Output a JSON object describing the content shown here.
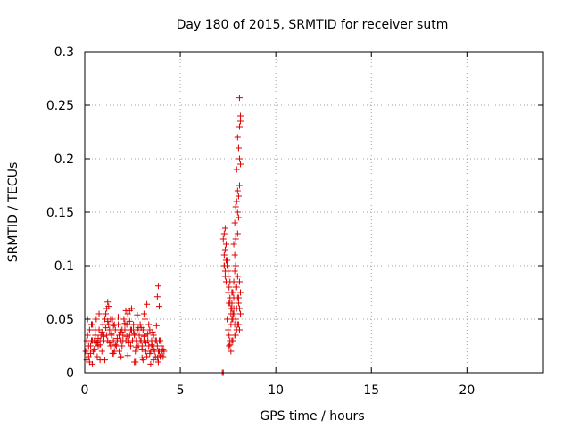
{
  "chart_data": {
    "type": "scatter",
    "title": "Day 180 of 2015, SRMTID for receiver sutm",
    "xlabel": "GPS time / hours",
    "ylabel": "SRMTID / TECUs",
    "xlim": [
      0,
      24
    ],
    "ylim": [
      0,
      0.3
    ],
    "xticks": [
      0,
      5,
      10,
      15,
      20
    ],
    "xtick_labels": [
      "0",
      "5",
      "10",
      "15",
      "20"
    ],
    "yticks": [
      0,
      0.05,
      0.1,
      0.15,
      0.2,
      0.25,
      0.3
    ],
    "ytick_labels": [
      "0",
      "0.05",
      "0.1",
      "0.15",
      "0.2",
      "0.25",
      "0.3"
    ],
    "grid": true,
    "legend": "none",
    "marker": "plus",
    "color": "#e00000",
    "series": [
      {
        "x": [
          0.05,
          0.1,
          0.15,
          0.2,
          0.25,
          0.3,
          0.35,
          0.4,
          0.45,
          0.5,
          0.55,
          0.6,
          0.65,
          0.7,
          0.75,
          0.8,
          0.85,
          0.9,
          0.95,
          1.0,
          1.05,
          1.1,
          1.15,
          1.2,
          1.25,
          1.3,
          1.35,
          1.4,
          1.45,
          1.5,
          1.55,
          1.6,
          1.65,
          1.7,
          1.75,
          1.8,
          1.85,
          1.9,
          1.95,
          2.0,
          2.05,
          2.1,
          2.15,
          2.2,
          2.25,
          2.3,
          2.35,
          2.4,
          2.45,
          2.5,
          2.55,
          2.6,
          2.65,
          2.7,
          2.75,
          2.8,
          2.85,
          2.9,
          2.95,
          3.0,
          3.05,
          3.1,
          3.15,
          3.2,
          3.25,
          3.3,
          3.35,
          3.4,
          3.45,
          3.5,
          3.55,
          3.6,
          3.65,
          3.7,
          3.75,
          3.8,
          3.85,
          3.9,
          3.95,
          4.0,
          4.05,
          4.1,
          4.15,
          0.1,
          0.2,
          0.3,
          0.4,
          0.5,
          0.6,
          0.7,
          0.8,
          0.9,
          1.0,
          1.1,
          1.2,
          1.3,
          1.4,
          1.5,
          1.6,
          1.7,
          1.8,
          1.9,
          2.0,
          2.1,
          2.2,
          2.3,
          2.4,
          2.5,
          2.6,
          2.7,
          2.8,
          2.9,
          3.0,
          3.1,
          3.2,
          3.3,
          3.4,
          3.5,
          3.6,
          3.7,
          3.8,
          3.9,
          4.0,
          4.1,
          0.15,
          0.35,
          0.55,
          0.75,
          0.95,
          1.15,
          1.35,
          1.55,
          1.75,
          1.95,
          2.15,
          2.35,
          2.55,
          2.75,
          2.95,
          3.15,
          3.35,
          3.55,
          3.75,
          3.95,
          0.25,
          0.65,
          1.05,
          1.45,
          1.85,
          2.25,
          2.65,
          3.05,
          3.45,
          3.85,
          1.2,
          1.25,
          2.35,
          2.45,
          3.1,
          3.25,
          3.8,
          3.85,
          3.9,
          0.4,
          0.8,
          1.5,
          1.9,
          2.6,
          3.0,
          3.6
        ],
        "y": [
          0.02,
          0.03,
          0.035,
          0.015,
          0.04,
          0.025,
          0.03,
          0.045,
          0.02,
          0.03,
          0.035,
          0.05,
          0.028,
          0.025,
          0.04,
          0.03,
          0.035,
          0.02,
          0.045,
          0.03,
          0.05,
          0.055,
          0.035,
          0.03,
          0.045,
          0.04,
          0.025,
          0.035,
          0.05,
          0.03,
          0.02,
          0.04,
          0.025,
          0.03,
          0.045,
          0.035,
          0.04,
          0.03,
          0.025,
          0.035,
          0.05,
          0.04,
          0.03,
          0.045,
          0.055,
          0.03,
          0.035,
          0.025,
          0.04,
          0.03,
          0.045,
          0.035,
          0.02,
          0.03,
          0.04,
          0.025,
          0.035,
          0.045,
          0.03,
          0.025,
          0.04,
          0.03,
          0.035,
          0.02,
          0.015,
          0.03,
          0.025,
          0.04,
          0.02,
          0.03,
          0.025,
          0.035,
          0.02,
          0.015,
          0.03,
          0.025,
          0.02,
          0.03,
          0.015,
          0.025,
          0.02,
          0.015,
          0.02,
          0.012,
          0.025,
          0.018,
          0.03,
          0.022,
          0.028,
          0.032,
          0.026,
          0.038,
          0.034,
          0.042,
          0.048,
          0.028,
          0.036,
          0.044,
          0.026,
          0.032,
          0.02,
          0.038,
          0.03,
          0.046,
          0.034,
          0.028,
          0.04,
          0.03,
          0.036,
          0.024,
          0.042,
          0.03,
          0.022,
          0.034,
          0.028,
          0.036,
          0.018,
          0.026,
          0.022,
          0.03,
          0.014,
          0.02,
          0.016,
          0.022,
          0.05,
          0.045,
          0.04,
          0.055,
          0.035,
          0.06,
          0.05,
          0.045,
          0.052,
          0.04,
          0.058,
          0.048,
          0.04,
          0.054,
          0.042,
          0.05,
          0.045,
          0.038,
          0.044,
          0.03,
          0.01,
          0.015,
          0.012,
          0.018,
          0.014,
          0.016,
          0.01,
          0.012,
          0.008,
          0.01,
          0.066,
          0.062,
          0.058,
          0.06,
          0.055,
          0.064,
          0.071,
          0.081,
          0.062,
          0.008,
          0.012,
          0.018,
          0.015,
          0.01,
          0.014,
          0.012
        ]
      },
      {
        "x": [
          7.2,
          7.25,
          7.3,
          7.35,
          7.4,
          7.45,
          7.5,
          7.55,
          7.6,
          7.65,
          7.7,
          7.75,
          7.8,
          7.85,
          7.9,
          7.95,
          8.0,
          8.05,
          8.1,
          8.15,
          7.3,
          7.4,
          7.5,
          7.6,
          7.7,
          7.8,
          7.9,
          8.0,
          8.1,
          7.25,
          7.35,
          7.45,
          7.55,
          7.65,
          7.75,
          7.85,
          7.95,
          8.05,
          8.15,
          7.3,
          7.35,
          7.4,
          7.5,
          7.6,
          7.7,
          7.8,
          7.9,
          8.0,
          8.1,
          8.1,
          8.15,
          8.1,
          8.15,
          8.0,
          8.05,
          8.1,
          8.15,
          7.95,
          8.0,
          8.05,
          8.1,
          7.9,
          7.95,
          8.0,
          8.05,
          7.85,
          7.9,
          8.0,
          7.8,
          7.85,
          7.9,
          7.5,
          7.55,
          7.6,
          7.65,
          7.7,
          7.75,
          7.8,
          7.55,
          7.65,
          7.75,
          7.85,
          7.95,
          8.05,
          7.45,
          7.6,
          7.7,
          7.9,
          7.3,
          7.35,
          7.4
        ],
        "y": [
          0.0,
          0.0,
          0.13,
          0.135,
          0.12,
          0.1,
          0.09,
          0.08,
          0.07,
          0.06,
          0.065,
          0.075,
          0.085,
          0.095,
          0.1,
          0.08,
          0.07,
          0.065,
          0.06,
          0.055,
          0.11,
          0.105,
          0.095,
          0.085,
          0.075,
          0.07,
          0.08,
          0.09,
          0.085,
          0.125,
          0.115,
          0.105,
          0.065,
          0.055,
          0.05,
          0.045,
          0.06,
          0.07,
          0.075,
          0.1,
          0.09,
          0.085,
          0.075,
          0.065,
          0.06,
          0.055,
          0.05,
          0.045,
          0.04,
          0.257,
          0.24,
          0.23,
          0.235,
          0.22,
          0.21,
          0.2,
          0.195,
          0.19,
          0.17,
          0.165,
          0.175,
          0.155,
          0.16,
          0.15,
          0.145,
          0.14,
          0.125,
          0.13,
          0.12,
          0.11,
          0.1,
          0.04,
          0.035,
          0.03,
          0.045,
          0.05,
          0.055,
          0.06,
          0.025,
          0.02,
          0.03,
          0.035,
          0.04,
          0.045,
          0.05,
          0.026,
          0.03,
          0.035,
          0.1,
          0.095,
          0.085
        ]
      }
    ]
  }
}
